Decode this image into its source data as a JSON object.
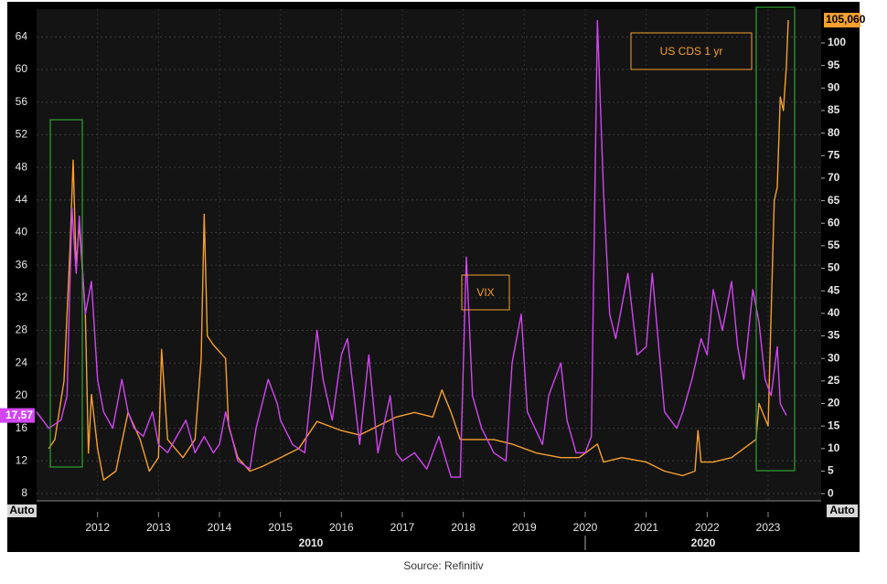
{
  "chart_data": {
    "type": "line",
    "source": "Source: Refinitiv",
    "xlim": [
      2011.0,
      2023.87
    ],
    "xticks": [
      2012,
      2013,
      2014,
      2015,
      2016,
      2017,
      2018,
      2019,
      2020,
      2021,
      2022,
      2023
    ],
    "x_groups": [
      {
        "label": "2010",
        "start": 2011.0,
        "end": 2020
      },
      {
        "label": "2020",
        "start": 2020,
        "end": 2023.87
      }
    ],
    "ylim": [
      7.1,
      67.4
    ],
    "yticks": [
      8,
      12,
      16,
      20,
      24,
      28,
      32,
      36,
      40,
      44,
      48,
      52,
      56,
      60,
      64
    ],
    "y2lim": [
      -1.6,
      107.5
    ],
    "y2ticks": [
      0,
      5,
      10,
      15,
      20,
      25,
      30,
      35,
      40,
      45,
      50,
      55,
      60,
      65,
      70,
      75,
      80,
      85,
      90,
      95,
      100
    ],
    "axis_corner_labels": [
      "Auto",
      "Auto"
    ],
    "grid": true,
    "annotations": [
      "US CDS 1 yr",
      "VIX"
    ],
    "series": [
      {
        "name": "VIX",
        "color": "#d146f0",
        "axis": "y",
        "badge": {
          "value": 17.57,
          "label": "17,57"
        },
        "x": [
          2011.0,
          2011.2,
          2011.4,
          2011.5,
          2011.58,
          2011.65,
          2011.7,
          2011.8,
          2011.9,
          2012.0,
          2012.1,
          2012.25,
          2012.4,
          2012.5,
          2012.6,
          2012.75,
          2012.9,
          2013.0,
          2013.15,
          2013.3,
          2013.45,
          2013.6,
          2013.75,
          2013.9,
          2014.0,
          2014.1,
          2014.3,
          2014.5,
          2014.6,
          2014.8,
          2014.95,
          2015.0,
          2015.2,
          2015.4,
          2015.6,
          2015.7,
          2015.85,
          2016.0,
          2016.1,
          2016.3,
          2016.45,
          2016.6,
          2016.8,
          2016.9,
          2017.0,
          2017.2,
          2017.4,
          2017.6,
          2017.8,
          2017.95,
          2018.05,
          2018.15,
          2018.3,
          2018.5,
          2018.7,
          2018.8,
          2018.95,
          2019.05,
          2019.3,
          2019.4,
          2019.6,
          2019.7,
          2019.85,
          2020.0,
          2020.1,
          2020.2,
          2020.3,
          2020.4,
          2020.5,
          2020.7,
          2020.85,
          2021.0,
          2021.1,
          2021.3,
          2021.5,
          2021.6,
          2021.75,
          2021.9,
          2022.0,
          2022.1,
          2022.25,
          2022.4,
          2022.5,
          2022.6,
          2022.75,
          2022.85,
          2022.95,
          2023.05,
          2023.15,
          2023.2,
          2023.3
        ],
        "values": [
          18,
          16,
          17,
          20,
          43,
          35,
          42,
          30,
          34,
          22,
          18,
          16,
          22,
          18,
          16,
          15,
          18,
          14,
          13,
          15,
          17,
          13,
          15,
          13,
          14,
          18,
          12,
          11,
          16,
          22,
          19,
          17,
          14,
          13,
          28,
          22,
          17,
          25,
          27,
          14,
          25,
          13,
          20,
          13,
          12,
          13,
          11,
          15,
          10,
          10,
          37,
          20,
          16,
          13,
          12,
          24,
          30,
          18,
          14,
          20,
          24,
          17,
          13,
          13,
          15,
          66,
          45,
          30,
          27,
          35,
          25,
          26,
          35,
          18,
          16,
          18,
          22,
          27,
          25,
          33,
          28,
          34,
          26,
          22,
          33,
          29,
          22,
          20,
          26,
          19,
          17.57
        ]
      },
      {
        "name": "US CDS 1 yr",
        "color": "#f5a030",
        "axis": "y2",
        "badge": {
          "value": 105.06,
          "label": "105,060"
        },
        "x": [
          2011.2,
          2011.3,
          2011.45,
          2011.55,
          2011.6,
          2011.65,
          2011.7,
          2011.8,
          2011.85,
          2011.9,
          2012.0,
          2012.1,
          2012.3,
          2012.5,
          2012.7,
          2012.85,
          2013.0,
          2013.05,
          2013.15,
          2013.4,
          2013.6,
          2013.7,
          2013.75,
          2013.8,
          2013.9,
          2014.1,
          2014.15,
          2014.3,
          2014.5,
          2014.7,
          2015.0,
          2015.3,
          2015.6,
          2016.0,
          2016.3,
          2016.6,
          2016.9,
          2017.2,
          2017.5,
          2017.65,
          2017.8,
          2017.95,
          2018.2,
          2018.5,
          2018.8,
          2019.2,
          2019.6,
          2019.9,
          2020.2,
          2020.3,
          2020.6,
          2021.0,
          2021.3,
          2021.6,
          2021.8,
          2021.85,
          2021.9,
          2022.1,
          2022.4,
          2022.6,
          2022.8,
          2022.85,
          2023.0,
          2023.05,
          2023.1,
          2023.15,
          2023.2,
          2023.25,
          2023.3,
          2023.33
        ],
        "values": [
          10,
          12,
          25,
          55,
          74,
          50,
          60,
          40,
          9,
          22,
          10,
          3,
          5,
          18,
          12,
          5,
          8,
          32,
          12,
          8,
          12,
          30,
          62,
          35,
          33,
          30,
          15,
          8,
          5,
          6,
          8,
          10,
          16,
          14,
          13,
          15,
          17,
          18,
          17,
          23,
          18,
          12,
          12,
          12,
          11,
          9,
          8,
          8,
          11,
          7,
          8,
          7,
          5,
          4,
          5,
          14,
          7,
          7,
          8,
          10,
          12,
          20,
          15,
          40,
          65,
          68,
          88,
          85,
          95,
          105.06
        ]
      }
    ]
  }
}
